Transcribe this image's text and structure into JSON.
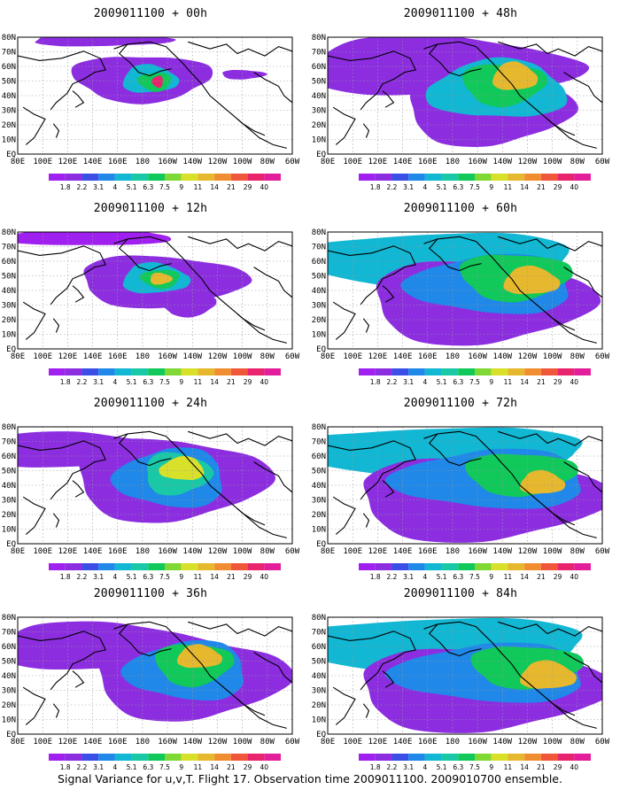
{
  "panels": [
    {
      "title": "2009011100 + 00h",
      "lead": "00h"
    },
    {
      "title": "2009011100 + 48h",
      "lead": "48h"
    },
    {
      "title": "2009011100 + 12h",
      "lead": "12h"
    },
    {
      "title": "2009011100 + 60h",
      "lead": "60h"
    },
    {
      "title": "2009011100 + 24h",
      "lead": "24h"
    },
    {
      "title": "2009011100 + 72h",
      "lead": "72h"
    },
    {
      "title": "2009011100 + 36h",
      "lead": "36h"
    },
    {
      "title": "2009011100 + 84h",
      "lead": "84h"
    }
  ],
  "lat_labels": [
    "80N",
    "70N",
    "60N",
    "50N",
    "40N",
    "30N",
    "20N",
    "10N",
    "EQ"
  ],
  "lon_labels": [
    "80E",
    "100E",
    "120E",
    "140E",
    "160E",
    "180",
    "160W",
    "140W",
    "120W",
    "100W",
    "80W",
    "60W"
  ],
  "colorbar": {
    "levels": [
      "1.8",
      "2.2",
      "3.1",
      "4",
      "5.1",
      "6.3",
      "7.5",
      "9",
      "11",
      "14",
      "21",
      "29",
      "40"
    ],
    "colors": [
      "#a020f0",
      "#8c2ee0",
      "#3b4fe6",
      "#1f88e8",
      "#11b7d3",
      "#19c8a6",
      "#11c85a",
      "#7fd833",
      "#d8e02a",
      "#e6b82d",
      "#f08d30",
      "#f0563a",
      "#e8246e",
      "#e21e9a"
    ]
  },
  "caption": "Signal Variance for u,v,T. Flight 17. Observation time 2009011100. 2009010700 ensemble."
}
